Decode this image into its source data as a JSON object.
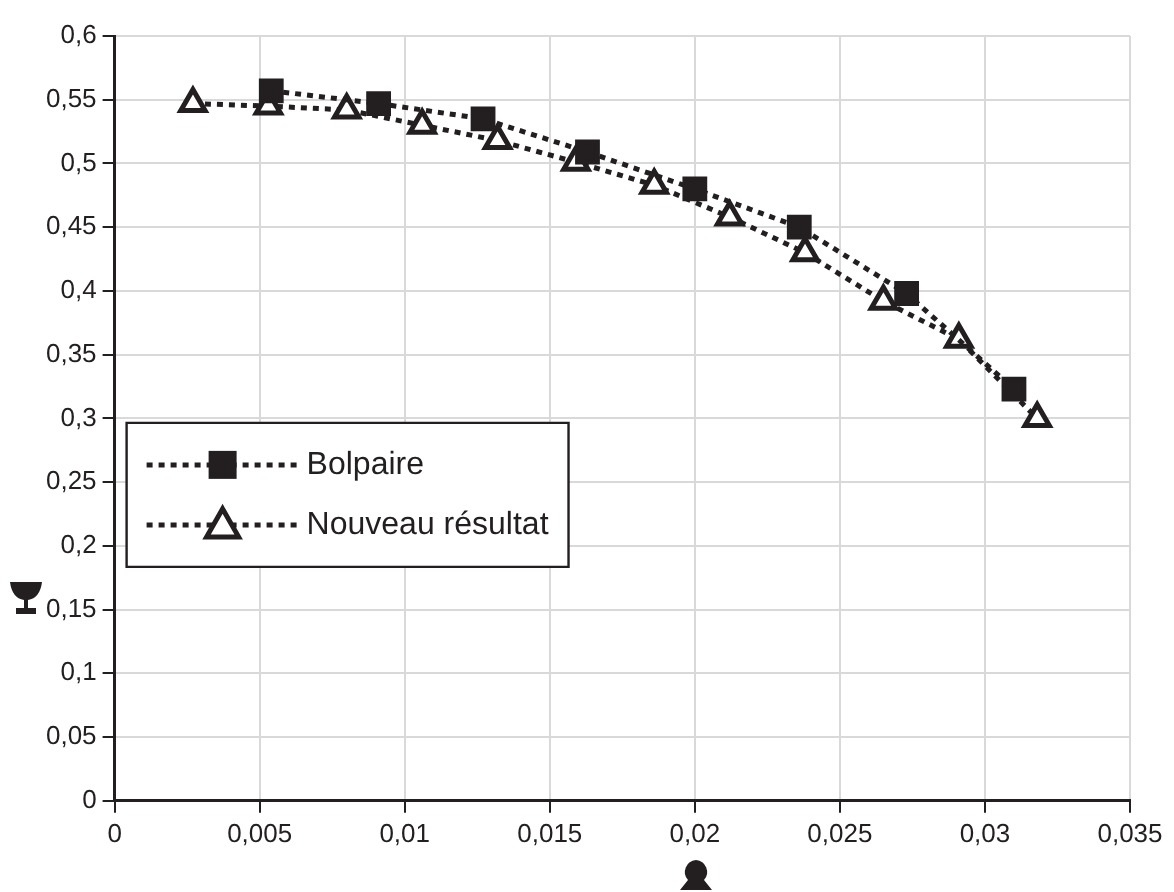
{
  "chart_data": {
    "type": "line",
    "legend": "left",
    "grid": true,
    "line_style": "dotted",
    "xlim": [
      0,
      0.035
    ],
    "ylim": [
      0,
      0.6
    ],
    "xticks": [
      {
        "value": 0,
        "label": "0"
      },
      {
        "value": 0.005,
        "label": "0,005"
      },
      {
        "value": 0.01,
        "label": "0,01"
      },
      {
        "value": 0.015,
        "label": "0,015"
      },
      {
        "value": 0.02,
        "label": "0,02"
      },
      {
        "value": 0.025,
        "label": "0,025"
      },
      {
        "value": 0.03,
        "label": "0,03"
      },
      {
        "value": 0.035,
        "label": "0,035"
      }
    ],
    "yticks": [
      {
        "value": 0,
        "label": "0"
      },
      {
        "value": 0.05,
        "label": "0,05"
      },
      {
        "value": 0.1,
        "label": "0,1"
      },
      {
        "value": 0.15,
        "label": "0,15"
      },
      {
        "value": 0.2,
        "label": "0,2"
      },
      {
        "value": 0.25,
        "label": "0,25"
      },
      {
        "value": 0.3,
        "label": "0,3"
      },
      {
        "value": 0.35,
        "label": "0,35"
      },
      {
        "value": 0.4,
        "label": "0,4"
      },
      {
        "value": 0.45,
        "label": "0,45"
      },
      {
        "value": 0.5,
        "label": "0,5"
      },
      {
        "value": 0.55,
        "label": "0,55"
      },
      {
        "value": 0.6,
        "label": "0,6"
      }
    ],
    "series": [
      {
        "name": "Bolpaire",
        "color": "#231f20",
        "marker": "square",
        "x": [
          0.0054,
          0.0091,
          0.0127,
          0.0163,
          0.02,
          0.0236,
          0.0273,
          0.031
        ],
        "values": [
          0.557,
          0.547,
          0.535,
          0.509,
          0.48,
          0.45,
          0.398,
          0.323
        ]
      },
      {
        "name": "Nouveau résultat",
        "color": "#231f20",
        "marker": "triangle",
        "x": [
          0.0027,
          0.0053,
          0.008,
          0.0106,
          0.0132,
          0.0159,
          0.0186,
          0.0212,
          0.0238,
          0.0265,
          0.0291,
          0.0318
        ],
        "values": [
          0.547,
          0.545,
          0.542,
          0.53,
          0.518,
          0.501,
          0.483,
          0.458,
          0.43,
          0.392,
          0.362,
          0.3
        ]
      }
    ]
  }
}
